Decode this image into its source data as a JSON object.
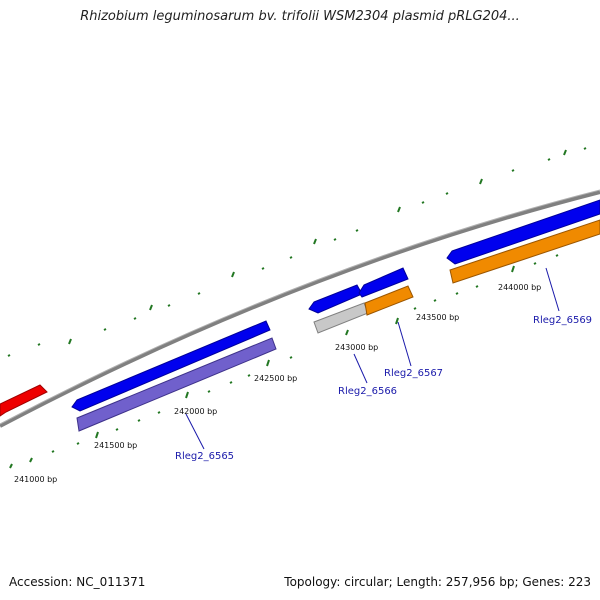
{
  "title": "Rhizobium leguminosarum bv. trifolii WSM2304 plasmid pRLG204...",
  "footer": {
    "accession": "Accession: NC_011371",
    "summary": "Topology: circular; Length: 257,956 bp; Genes: 223"
  },
  "ticks": [
    {
      "label": "241000 bp"
    },
    {
      "label": "241500 bp"
    },
    {
      "label": "242000 bp"
    },
    {
      "label": "242500 bp"
    },
    {
      "label": "243000 bp"
    },
    {
      "label": "243500 bp"
    },
    {
      "label": "244000 bp"
    }
  ],
  "genes": [
    {
      "label": "Rleg2_6565"
    },
    {
      "label": "Rleg2_6566"
    },
    {
      "label": "Rleg2_6567"
    },
    {
      "label": "Rleg2_6569"
    }
  ],
  "colors": {
    "backbone": "#808080",
    "forward_gene": "#0000ee",
    "reverse_purple": "#7060cc",
    "reverse_orange": "#f08a00",
    "reverse_gray": "#c8c8c8",
    "other_gene": "#ee0000",
    "tick": "#227722",
    "gene_label": "#1a1aaa"
  }
}
